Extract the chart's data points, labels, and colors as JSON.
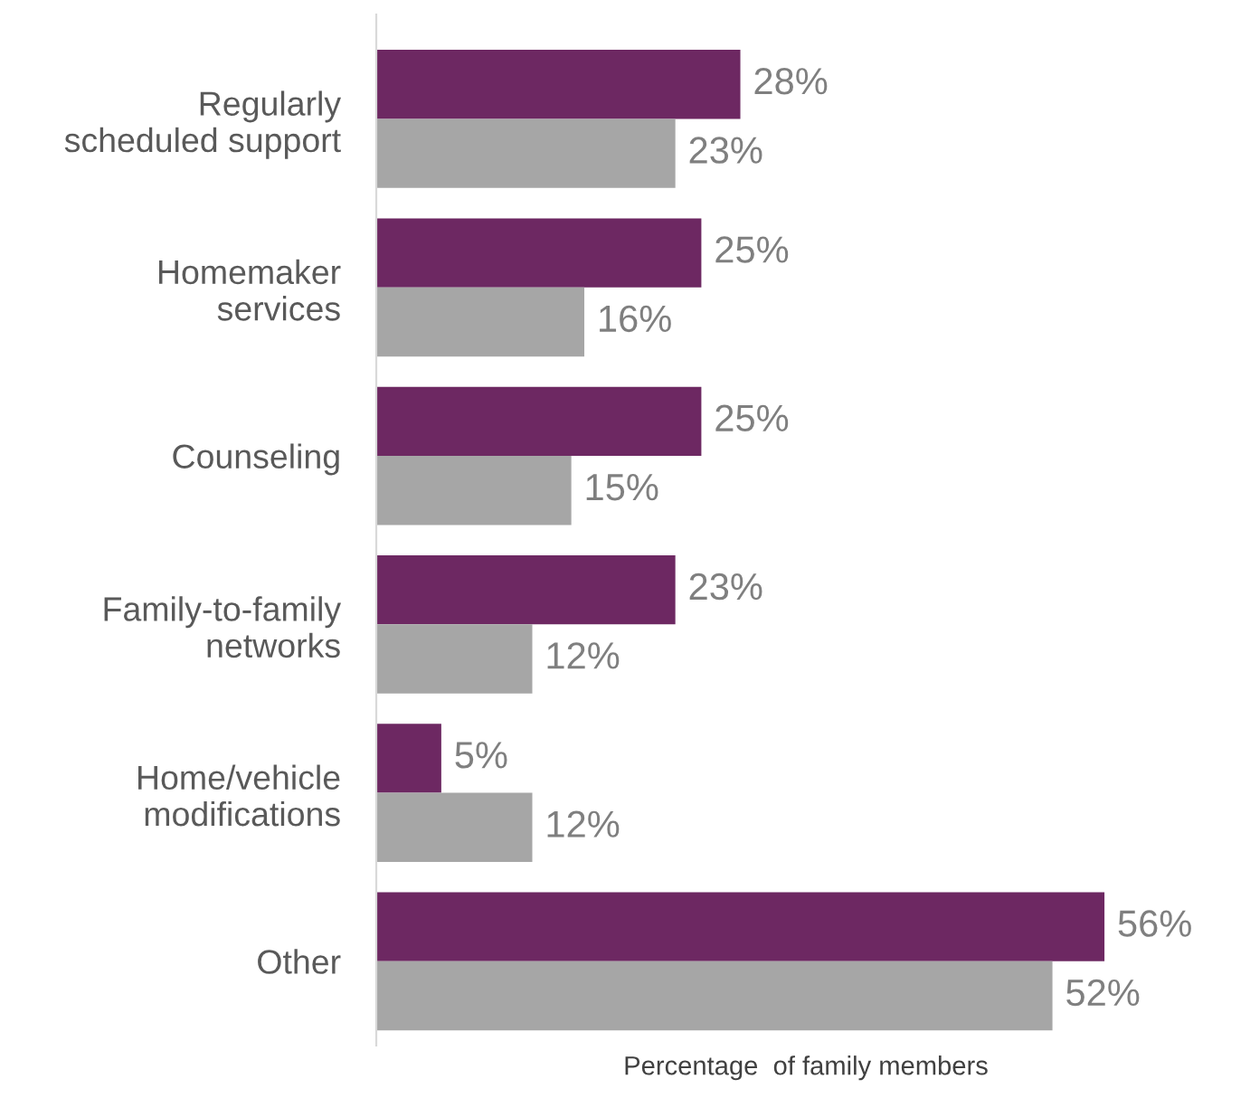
{
  "chart_data": {
    "type": "bar",
    "orientation": "horizontal",
    "xlabel": "Percentage  of family members",
    "categories": [
      "Regularly\nscheduled support",
      "Homemaker\nservices",
      "Counseling",
      "Family-to-family\nnetworks",
      "Home/vehicle\nmodifications",
      "Other"
    ],
    "series": [
      {
        "color": "#6d2862",
        "values": [
          28,
          25,
          25,
          23,
          5,
          56
        ],
        "value_labels": [
          "28%",
          "25%",
          "25%",
          "23%",
          "5%",
          "56%"
        ]
      },
      {
        "color": "#a6a6a6",
        "values": [
          23,
          16,
          15,
          12,
          12,
          52
        ],
        "value_labels": [
          "23%",
          "16%",
          "15%",
          "12%",
          "12%",
          "52%"
        ]
      }
    ],
    "grid": false,
    "legend": false
  }
}
